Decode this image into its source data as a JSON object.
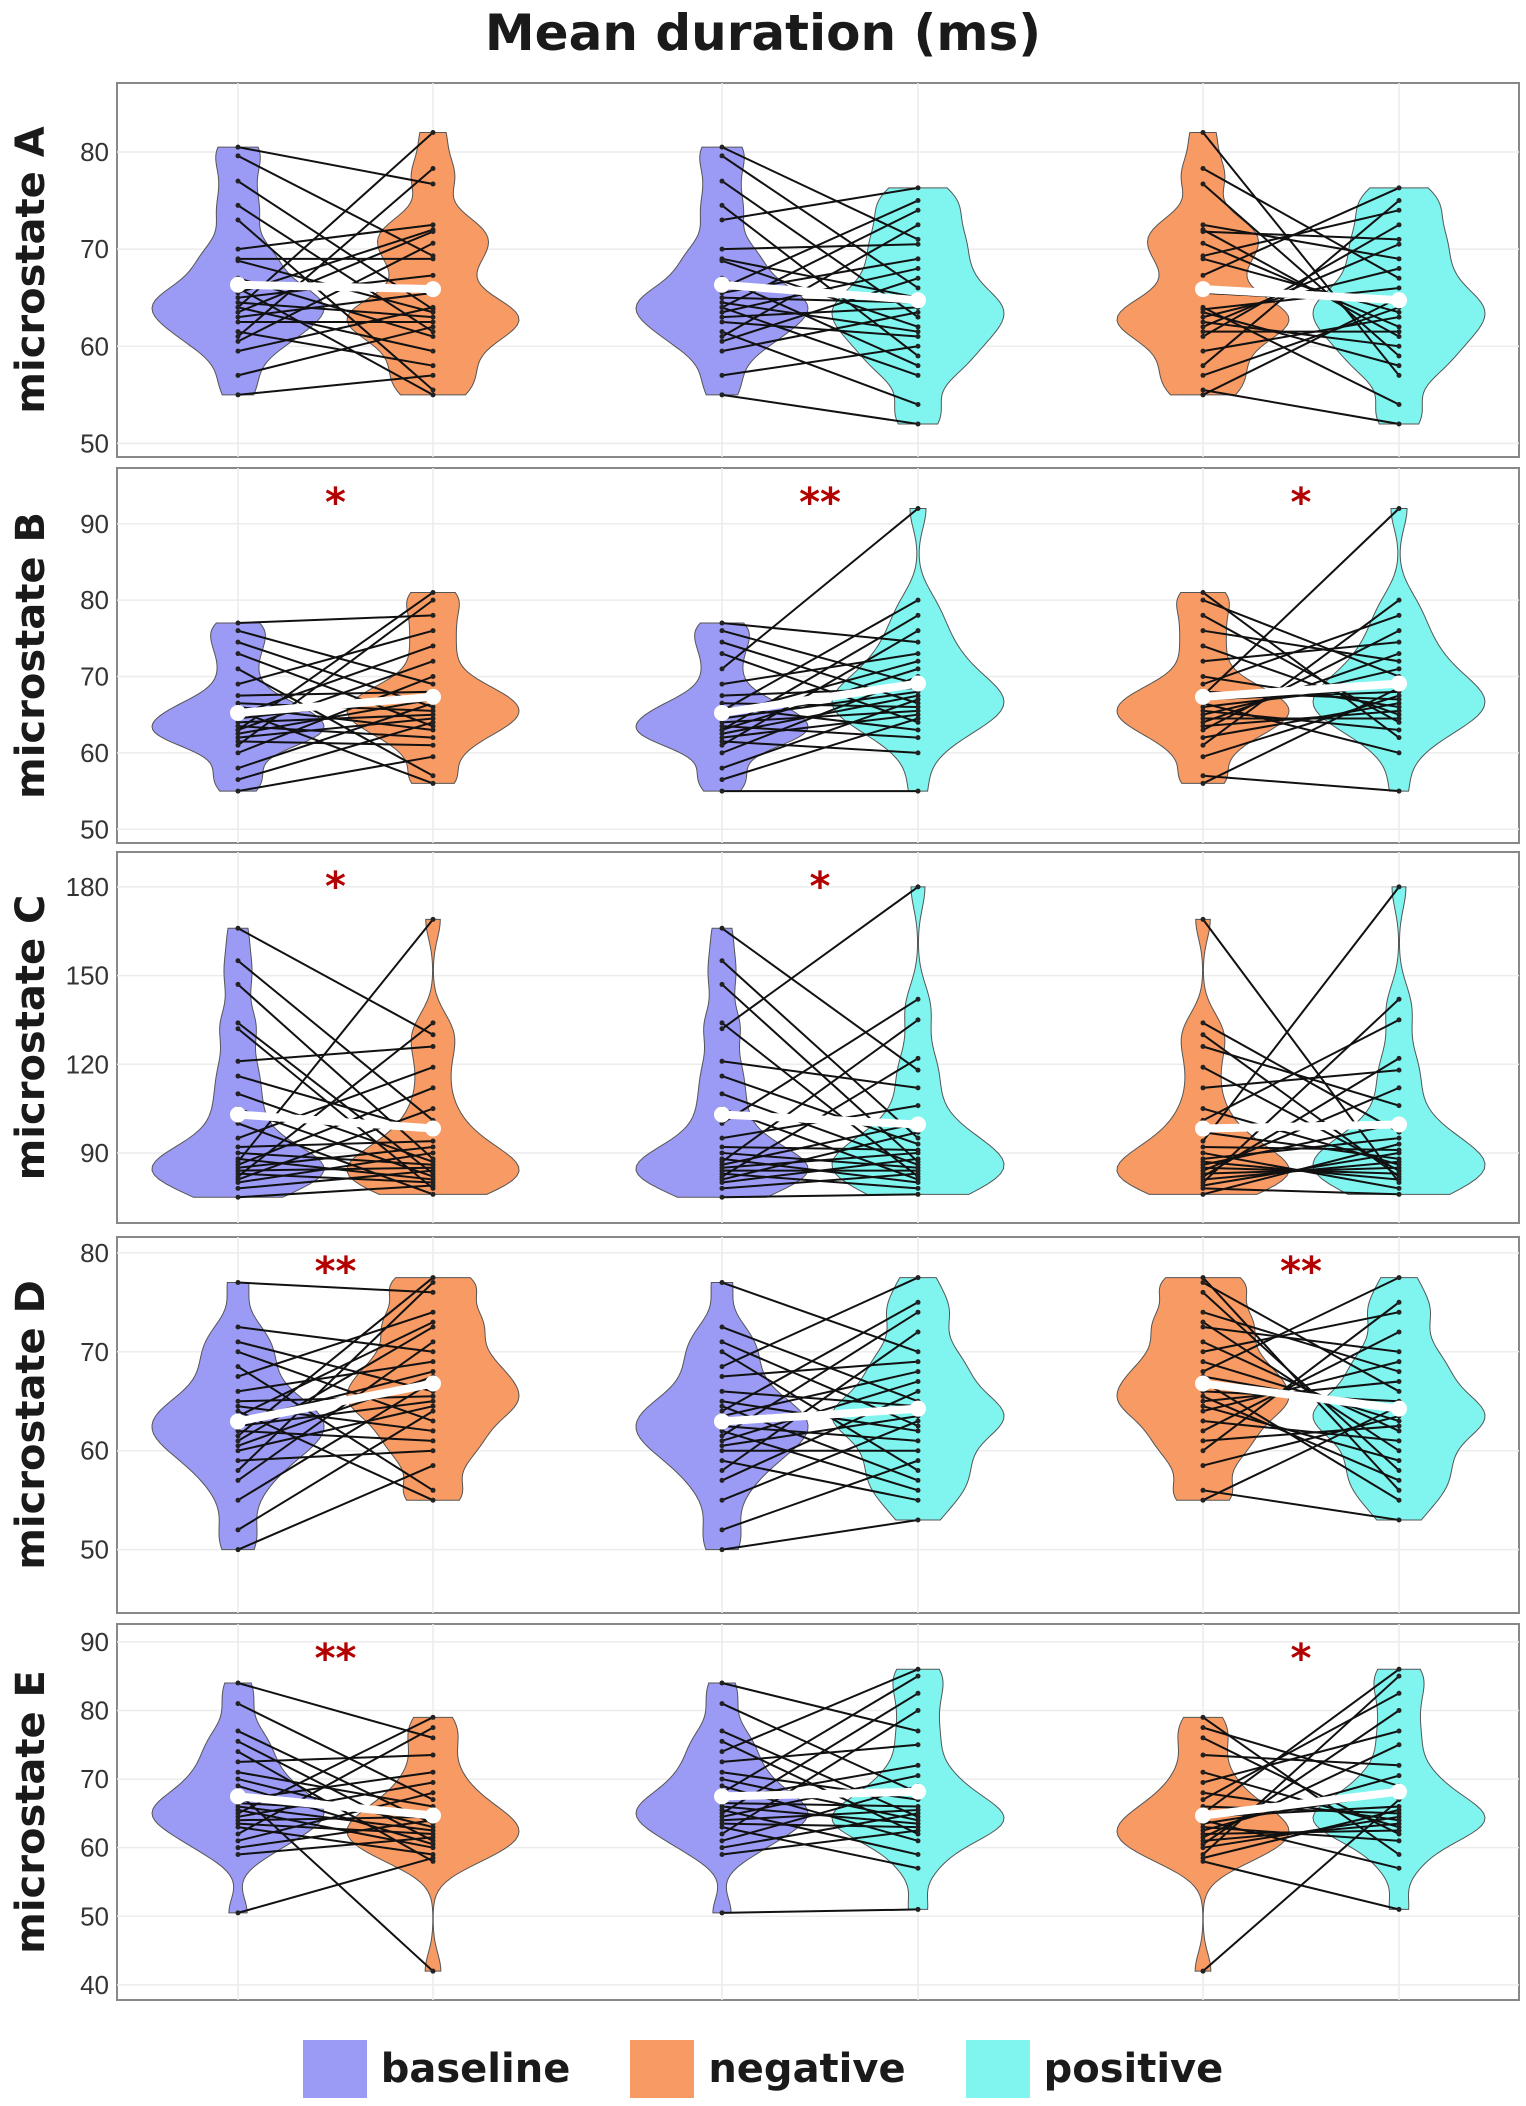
{
  "chart_data": {
    "type": "violin-paired",
    "title": "Mean duration (ms)",
    "conditions": [
      "baseline",
      "negative",
      "positive"
    ],
    "colors": {
      "baseline": "#9b9bf5",
      "negative": "#f79a63",
      "positive": "#80f5f0"
    },
    "comparisons": [
      [
        "baseline",
        "negative"
      ],
      [
        "baseline",
        "positive"
      ],
      [
        "negative",
        "positive"
      ]
    ],
    "legend": {
      "position": "bottom",
      "items": [
        "baseline",
        "negative",
        "positive"
      ]
    },
    "rows": [
      {
        "label": "microstate A",
        "ylim": [
          48.6,
          87.1
        ],
        "ticks": [
          50,
          60,
          70,
          80
        ],
        "significance": [
          "",
          "",
          ""
        ],
        "values": {
          "baseline": [
            80.5,
            79.6,
            77,
            74.5,
            73,
            70,
            69,
            68.8,
            67,
            66,
            65.5,
            65,
            64.5,
            64,
            64,
            63.5,
            63,
            62.5,
            61.5,
            61,
            60.5,
            59.5,
            57,
            55
          ],
          "negative": [
            82,
            78.3,
            76.7,
            72.5,
            72,
            71.8,
            70.6,
            69.3,
            69,
            67.3,
            65.5,
            64,
            63.8,
            63.5,
            63,
            62.5,
            62,
            61.5,
            61,
            59.5,
            58,
            57,
            55.5,
            55
          ],
          "positive": [
            76.3,
            75,
            74,
            72.5,
            71,
            70.5,
            69,
            68,
            67,
            66,
            65,
            64.5,
            64,
            63.5,
            63,
            62,
            61.5,
            61,
            60,
            59,
            58,
            57,
            54,
            52
          ]
        }
      },
      {
        "label": "microstate B",
        "ylim": [
          48.2,
          97.3
        ],
        "ticks": [
          50,
          60,
          70,
          80,
          90
        ],
        "significance": [
          "*",
          "**",
          "*"
        ],
        "values": {
          "baseline": [
            77,
            76,
            74.5,
            73,
            71,
            69,
            67.5,
            66.5,
            66,
            65.5,
            65,
            64.5,
            64,
            63.5,
            63,
            63,
            62.5,
            62,
            61.5,
            61,
            60,
            58,
            56.5,
            55
          ],
          "negative": [
            81,
            80,
            78,
            76,
            74,
            72,
            70,
            69,
            68,
            67.5,
            67,
            66.5,
            66,
            65.5,
            65,
            64.5,
            64,
            63.5,
            63,
            62,
            61,
            59.5,
            57,
            56
          ],
          "positive": [
            92,
            80,
            78,
            76,
            74.5,
            73,
            72,
            71,
            70,
            69,
            68.5,
            68,
            67.5,
            67,
            66.5,
            66,
            65.5,
            65,
            64.5,
            64,
            63,
            62,
            60,
            55
          ]
        }
      },
      {
        "label": "microstate C",
        "ylim": [
          66.3,
          191.8
        ],
        "ticks": [
          90,
          120,
          150,
          180
        ],
        "significance": [
          "*",
          "*",
          ""
        ],
        "values": {
          "baseline": [
            166,
            155,
            147,
            134,
            132,
            121,
            116,
            110,
            105,
            100,
            95,
            92,
            90,
            88,
            87,
            86,
            85,
            84,
            83,
            82,
            81,
            80,
            78,
            75
          ],
          "negative": [
            169,
            134,
            130,
            126,
            119,
            112,
            105,
            101,
            97,
            94,
            92,
            90,
            88,
            87,
            86,
            85,
            84,
            83,
            82,
            81,
            80,
            79,
            78,
            76
          ],
          "positive": [
            180,
            142,
            135,
            122,
            118,
            112,
            106,
            100,
            97,
            95,
            93,
            91,
            90,
            88,
            87,
            86,
            85,
            84,
            83,
            82,
            81,
            80,
            78,
            76
          ]
        }
      },
      {
        "label": "microstate D",
        "ylim": [
          43.6,
          81.6
        ],
        "ticks": [
          50,
          60,
          70,
          80
        ],
        "significance": [
          "**",
          "",
          "**"
        ],
        "values": {
          "baseline": [
            77,
            72.5,
            71,
            70,
            68.5,
            67.5,
            66,
            65,
            64.5,
            64,
            63.5,
            63,
            62.5,
            62,
            61.5,
            61,
            60.5,
            60,
            59,
            58,
            57,
            55,
            52,
            50
          ],
          "negative": [
            77.5,
            77,
            76,
            74,
            73,
            72.5,
            71,
            70,
            69,
            68,
            67.5,
            67,
            66,
            65.5,
            65,
            64.5,
            64,
            63,
            62,
            61,
            60,
            58.5,
            56,
            55
          ],
          "positive": [
            77.5,
            75,
            74,
            72,
            70,
            69,
            68,
            67,
            66,
            65,
            64.5,
            64,
            63.5,
            63,
            62.5,
            62,
            61,
            60,
            59,
            58,
            57,
            56,
            55,
            53
          ]
        }
      },
      {
        "label": "microstate E",
        "ylim": [
          37.8,
          92.6
        ],
        "ticks": [
          40,
          50,
          60,
          70,
          80,
          90
        ],
        "significance": [
          "**",
          "",
          "*"
        ],
        "values": {
          "baseline": [
            84,
            81,
            77,
            75.5,
            74,
            72.5,
            71,
            70,
            69,
            68,
            67,
            66.5,
            66,
            65.5,
            65,
            64.5,
            64,
            63.5,
            63,
            62,
            61,
            60,
            59,
            50.5
          ],
          "negative": [
            79,
            77.5,
            76,
            73.5,
            71,
            69.5,
            68,
            67,
            66,
            65,
            64.5,
            64,
            63.5,
            63,
            62.5,
            62,
            61.5,
            61,
            60.5,
            60,
            59,
            58.5,
            58,
            42
          ],
          "positive": [
            86,
            85,
            82.5,
            80,
            77,
            75,
            72,
            70.5,
            69,
            68,
            67,
            66,
            65.5,
            65,
            64.5,
            64,
            63.5,
            63,
            62.5,
            62,
            61,
            59,
            57,
            51
          ]
        }
      }
    ]
  }
}
